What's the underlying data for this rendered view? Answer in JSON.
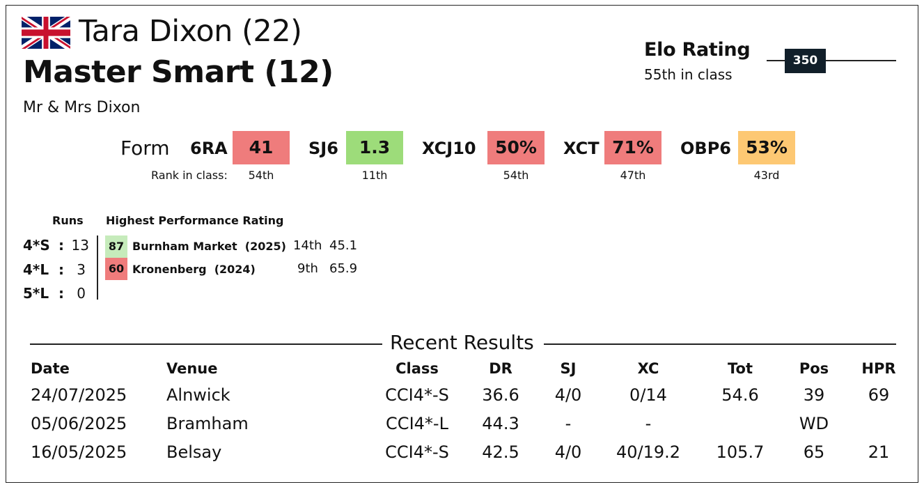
{
  "header": {
    "flag_icon": "union-jack-flag-icon",
    "rider": "Tara Dixon (22)",
    "horse": "Master Smart (12)",
    "owner": "Mr & Mrs Dixon"
  },
  "elo": {
    "title": "Elo Rating",
    "class_rank": "55th in class",
    "value": "350"
  },
  "form": {
    "label": "Form",
    "rank_label": "Rank in class:",
    "metrics": [
      {
        "name": "6RA",
        "value": "41",
        "rank": "54th",
        "color": "#ef7c7c"
      },
      {
        "name": "SJ6",
        "value": "1.3",
        "rank": "11th",
        "color": "#9ddc7a"
      },
      {
        "name": "XCJ10",
        "value": "50%",
        "rank": "54th",
        "color": "#ef7c7c"
      },
      {
        "name": "XCT",
        "value": "71%",
        "rank": "47th",
        "color": "#ef7c7c"
      },
      {
        "name": "OBP6",
        "value": "53%",
        "rank": "43rd",
        "color": "#fdc873"
      }
    ]
  },
  "runs": {
    "header": "Runs",
    "hpr_header": "Highest Performance Rating",
    "levels": [
      {
        "level": "4*S",
        "sep": ":",
        "count": "13"
      },
      {
        "level": "4*L",
        "sep": ":",
        "count": "3"
      },
      {
        "level": "5*L",
        "sep": ":",
        "count": "0"
      }
    ],
    "hpr": [
      {
        "rating": "87",
        "venue": "Burnham Market",
        "year": "(2025)",
        "pos": "14th",
        "score": "45.1",
        "color": "#c6ebbb"
      },
      {
        "rating": "60",
        "venue": "Kronenberg",
        "year": "(2024)",
        "pos": "9th",
        "score": "65.9",
        "color": "#ef7c7c"
      }
    ]
  },
  "results": {
    "title": "Recent Results",
    "columns": [
      "Date",
      "Venue",
      "Class",
      "DR",
      "SJ",
      "XC",
      "Tot",
      "Pos",
      "HPR"
    ],
    "rows": [
      [
        "24/07/2025",
        "Alnwick",
        "CCI4*-S",
        "36.6",
        "4/0",
        "0/14",
        "54.6",
        "39",
        "69"
      ],
      [
        "05/06/2025",
        "Bramham",
        "CCI4*-L",
        "44.3",
        "-",
        "-",
        "",
        "WD",
        ""
      ],
      [
        "16/05/2025",
        "Belsay",
        "CCI4*-S",
        "42.5",
        "4/0",
        "40/19.2",
        "105.7",
        "65",
        "21"
      ]
    ]
  }
}
